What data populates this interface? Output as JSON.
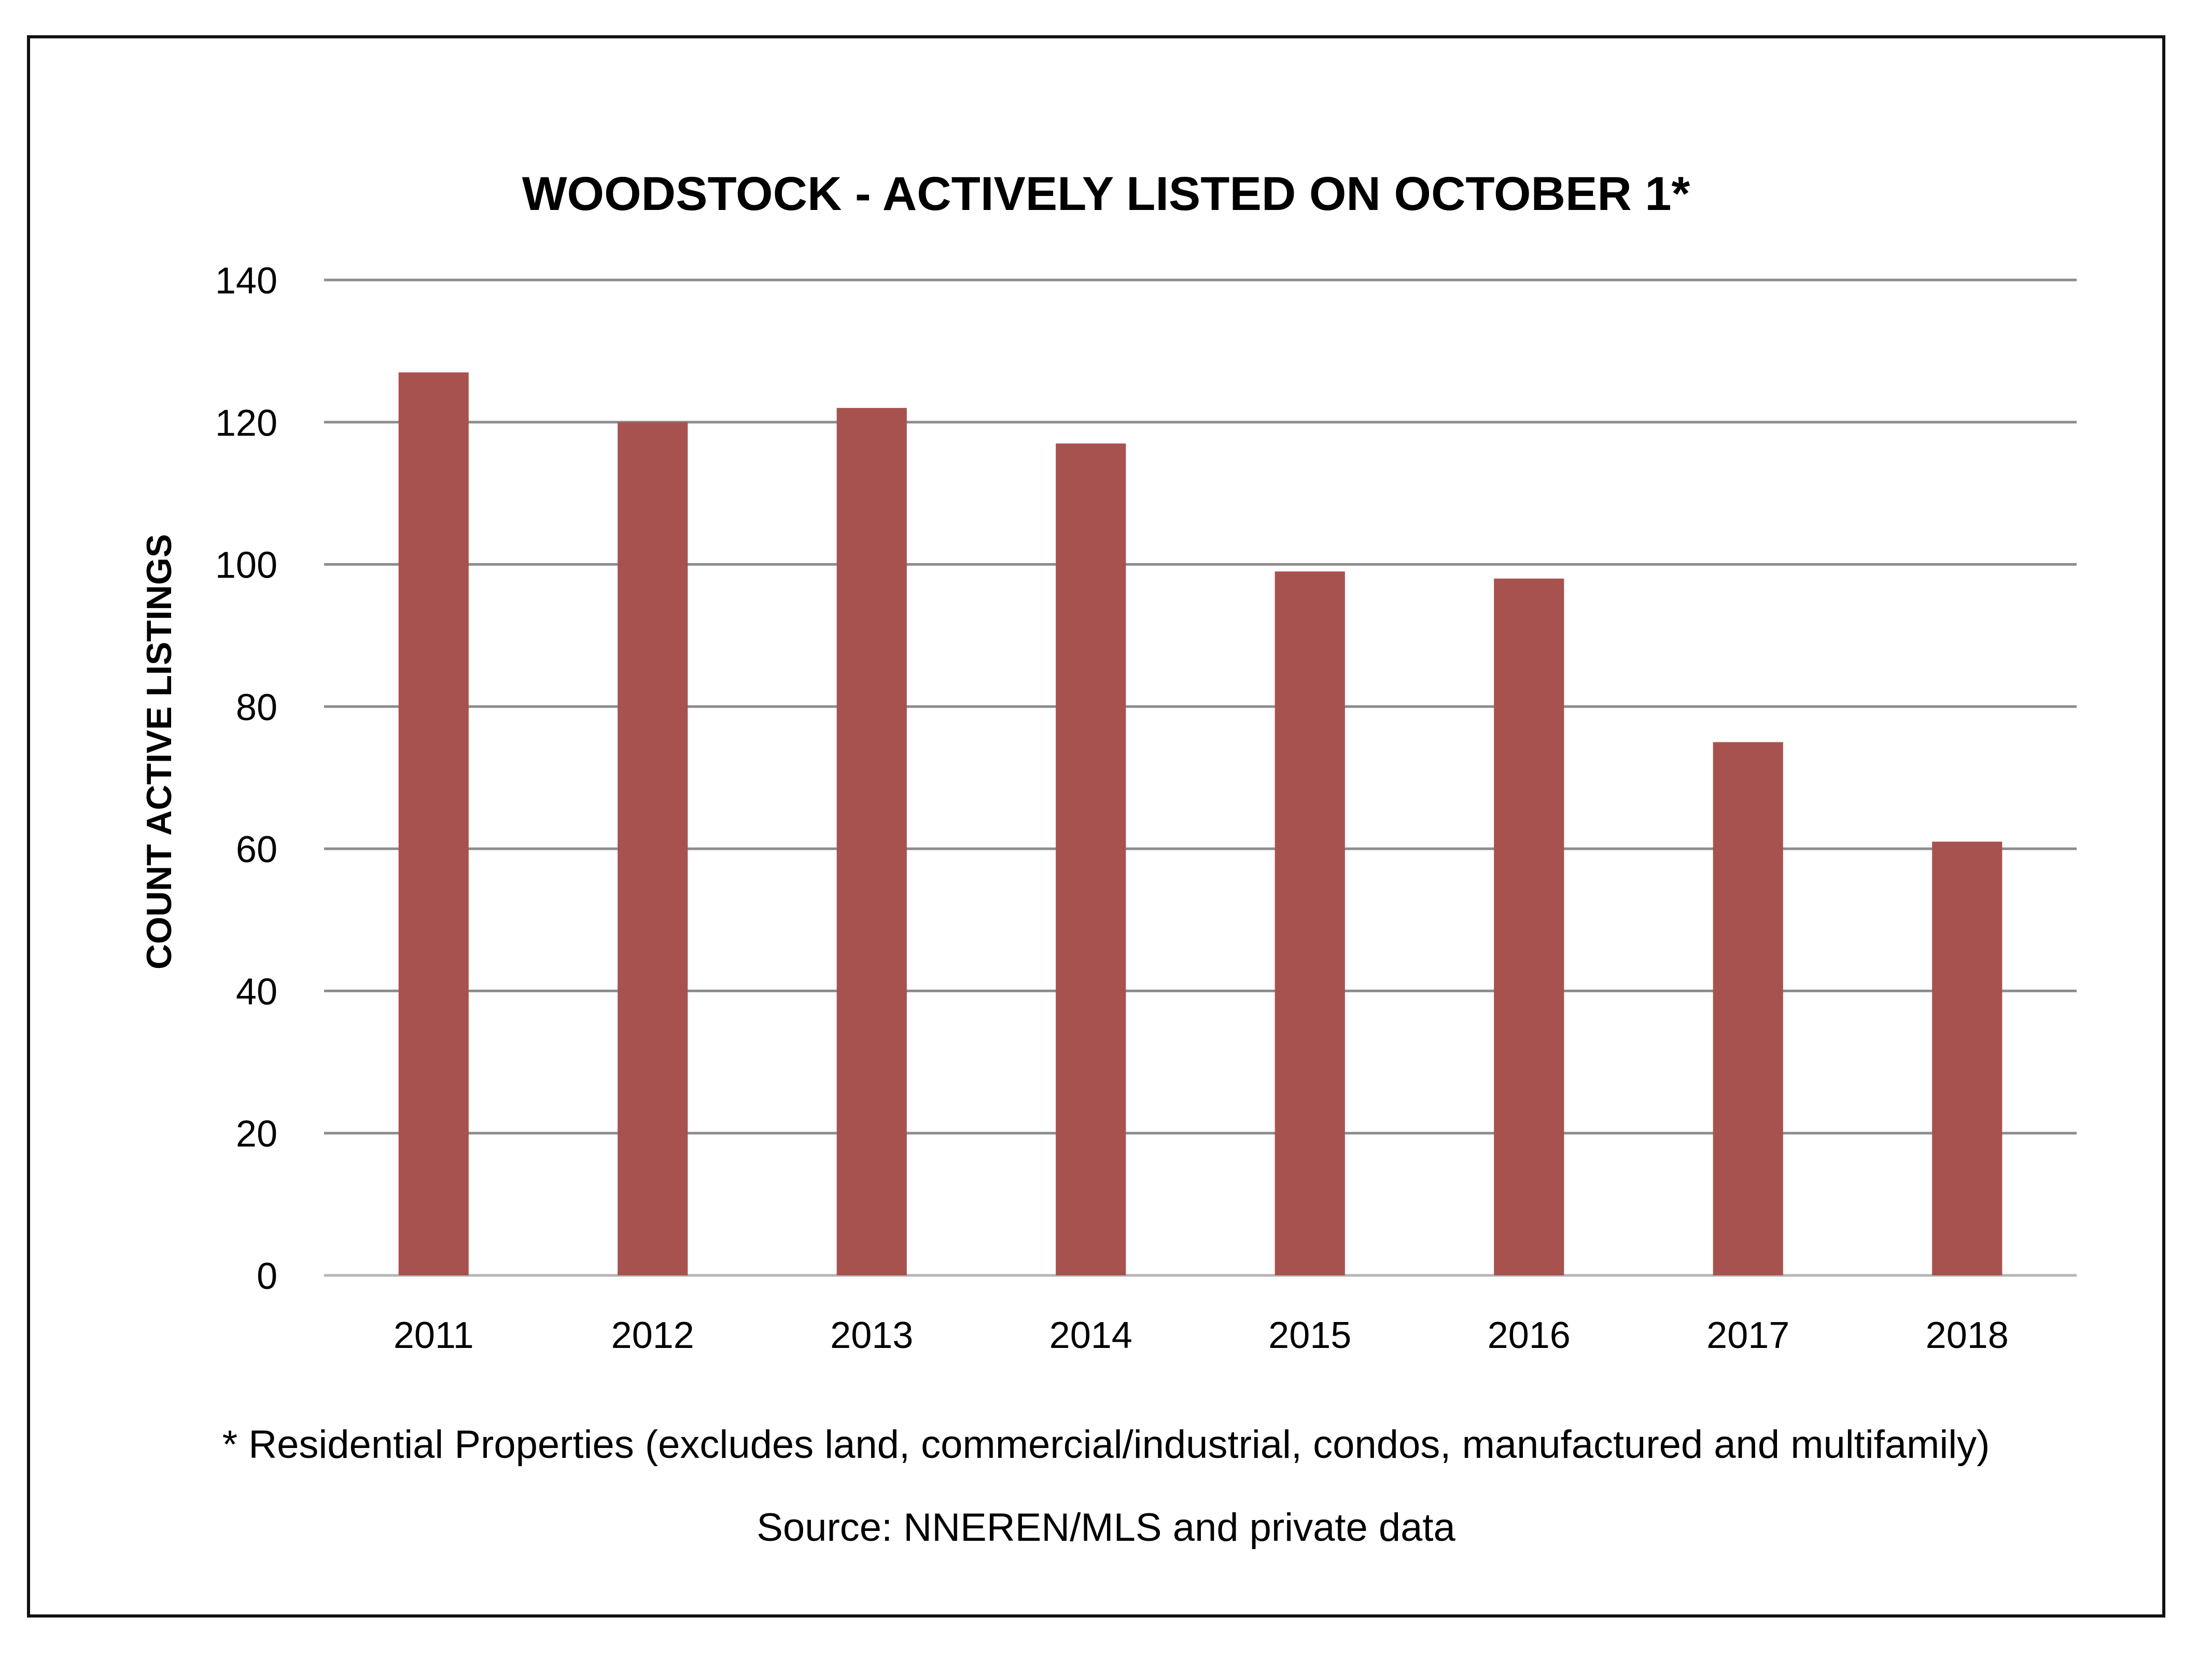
{
  "chart_data": {
    "type": "bar",
    "title": "WOODSTOCK - ACTIVELY LISTED ON OCTOBER 1*",
    "xlabel": "",
    "ylabel": "COUNT ACTIVE LISTINGS",
    "categories": [
      "2011",
      "2012",
      "2013",
      "2014",
      "2015",
      "2016",
      "2017",
      "2018"
    ],
    "values": [
      127,
      120,
      122,
      117,
      99,
      98,
      75,
      61
    ],
    "ylim": [
      0,
      140
    ],
    "yticks": [
      0,
      20,
      40,
      60,
      80,
      100,
      120,
      140
    ],
    "grid": true,
    "legend": "none",
    "bar_color": "#A85250",
    "gridline_color": "#8C8C8C"
  },
  "footnote": "* Residential Properties (excludes land, commercial/industrial, condos, manufactured and multifamily)",
  "source": "Source: NNEREN/MLS and private data"
}
